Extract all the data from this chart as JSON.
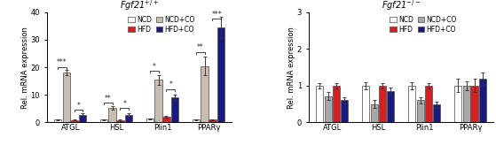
{
  "left": {
    "title": "Fgf21$^{+/+}$",
    "ylabel": "Rel. mRNA expression",
    "ylim": [
      0,
      40
    ],
    "yticks": [
      0,
      10,
      20,
      30,
      40
    ],
    "groups": [
      "ATGL",
      "HSL",
      "Plin1",
      "PPARγ"
    ],
    "bars": {
      "NCD": [
        1.0,
        1.0,
        1.3,
        1.0
      ],
      "NCD+CO": [
        18.0,
        5.2,
        15.5,
        20.5
      ],
      "HFD": [
        0.8,
        0.8,
        2.0,
        1.0
      ],
      "HFD+CO": [
        2.8,
        2.8,
        9.0,
        34.5
      ]
    },
    "errors": {
      "NCD": [
        0.25,
        0.2,
        0.25,
        0.15
      ],
      "NCD+CO": [
        1.0,
        0.7,
        1.8,
        3.5
      ],
      "HFD": [
        0.15,
        0.2,
        0.4,
        0.15
      ],
      "HFD+CO": [
        0.4,
        0.4,
        1.2,
        4.0
      ]
    },
    "significance": [
      {
        "group": 0,
        "bars": [
          0,
          1
        ],
        "label": "***",
        "y": 19.5
      },
      {
        "group": 0,
        "bars": [
          2,
          3
        ],
        "label": "*",
        "y": 4.0
      },
      {
        "group": 1,
        "bars": [
          0,
          1
        ],
        "label": "**",
        "y": 6.5
      },
      {
        "group": 1,
        "bars": [
          2,
          3
        ],
        "label": "*",
        "y": 4.5
      },
      {
        "group": 2,
        "bars": [
          0,
          1
        ],
        "label": "*",
        "y": 18.0
      },
      {
        "group": 2,
        "bars": [
          2,
          3
        ],
        "label": "*",
        "y": 11.5
      },
      {
        "group": 3,
        "bars": [
          0,
          1
        ],
        "label": "**",
        "y": 25.0
      },
      {
        "group": 3,
        "bars": [
          2,
          3
        ],
        "label": "***",
        "y": 37.0
      }
    ]
  },
  "right": {
    "title": "Fgf21$^{-/-}$",
    "ylabel": "Rel. mRNA expression",
    "ylim": [
      0,
      3
    ],
    "yticks": [
      0,
      1,
      2,
      3
    ],
    "groups": [
      "ATGL",
      "HSL",
      "Plin1",
      "PPARγ"
    ],
    "bars": {
      "NCD": [
        1.0,
        1.0,
        1.0,
        1.0
      ],
      "NCD+CO": [
        0.72,
        0.5,
        0.6,
        1.0
      ],
      "HFD": [
        1.0,
        1.0,
        1.0,
        1.0
      ],
      "HFD+CO": [
        0.6,
        0.85,
        0.48,
        1.18
      ]
    },
    "errors": {
      "NCD": [
        0.08,
        0.1,
        0.1,
        0.18
      ],
      "NCD+CO": [
        0.12,
        0.1,
        0.08,
        0.12
      ],
      "HFD": [
        0.08,
        0.08,
        0.08,
        0.18
      ],
      "HFD+CO": [
        0.08,
        0.1,
        0.08,
        0.18
      ]
    }
  },
  "colors": {
    "NCD": "#ffffff",
    "NCD+CO_left": "#c8bdb0",
    "NCD+CO_right": "#a8a8a8",
    "HFD": "#d42020",
    "HFD+CO": "#1a1a7e"
  },
  "bar_width": 0.17,
  "edge_color": "#555555",
  "legend_left": {
    "row1": [
      "NCD",
      "HFD"
    ],
    "row2": [
      "NCD+CO",
      "HFD+CO"
    ]
  }
}
